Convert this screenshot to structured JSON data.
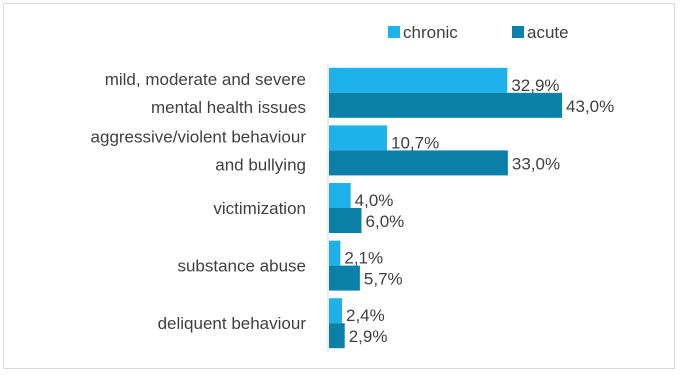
{
  "chart_data": {
    "type": "bar",
    "orientation": "horizontal",
    "categories": [
      [
        "mild, moderate and severe",
        "mental health issues"
      ],
      [
        "aggressive/violent behaviour",
        "and bullying"
      ],
      [
        "victimization"
      ],
      [
        "substance abuse"
      ],
      [
        "deliquent behaviour"
      ]
    ],
    "series": [
      {
        "name": "chronic",
        "color": "#1fb2ea",
        "values": [
          32.9,
          10.7,
          4.0,
          2.1,
          2.4
        ],
        "labels": [
          "32,9%",
          "10,7%",
          "4,0%",
          "2,1%",
          "2,4%"
        ]
      },
      {
        "name": "acute",
        "color": "#0b80a9",
        "values": [
          43.0,
          33.0,
          6.0,
          5.7,
          2.9
        ],
        "labels": [
          "43,0%",
          "33,0%",
          "6,0%",
          "5,7%",
          "2,9%"
        ]
      }
    ],
    "xlim": [
      0,
      50
    ],
    "grid": false,
    "legend_position": "top-right",
    "title": "",
    "xlabel": "",
    "ylabel": ""
  }
}
